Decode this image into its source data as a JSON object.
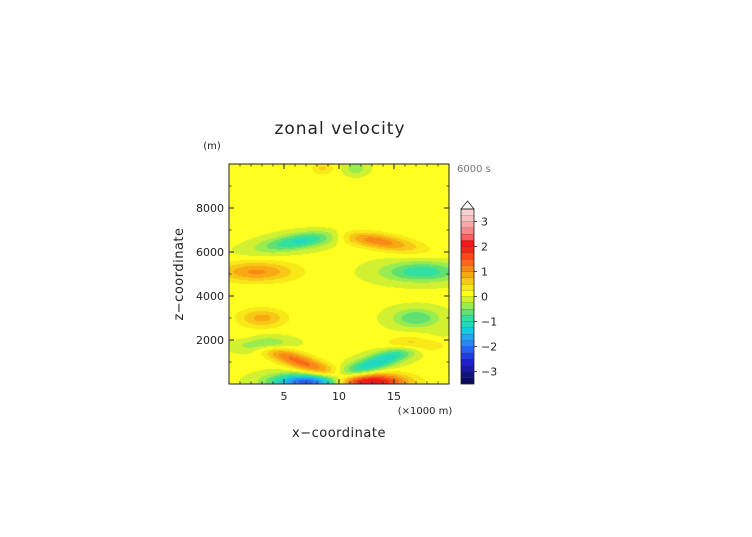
{
  "chart_data": {
    "type": "heatmap",
    "title": "zonal velocity",
    "xlabel": "x−coordinate",
    "ylabel": "z−coordinate",
    "x_unit": "(×1000 m)",
    "y_unit": "(m)",
    "time_label": "6000 s",
    "xlim": [
      0,
      20
    ],
    "ylim": [
      0,
      10000
    ],
    "x_ticks": [
      5,
      10,
      15
    ],
    "x_tick_labels": [
      "5",
      "10",
      "15"
    ],
    "y_ticks": [
      2000,
      4000,
      6000,
      8000
    ],
    "y_tick_labels": [
      "2000",
      "4000",
      "6000",
      "8000"
    ],
    "colorbar": {
      "levels": [
        -3.5,
        -3.25,
        -3,
        -2.75,
        -2.5,
        -2.25,
        -2,
        -1.75,
        -1.5,
        -1.25,
        -1,
        -0.75,
        -0.5,
        -0.25,
        0,
        0.25,
        0.5,
        0.75,
        1,
        1.25,
        1.5,
        1.75,
        2,
        2.25,
        2.5,
        2.75,
        3,
        3.25,
        3.5
      ],
      "colors": [
        "#0a0a60",
        "#101080",
        "#1818a8",
        "#2020c8",
        "#1e3ee0",
        "#2860f0",
        "#2a86f8",
        "#20a8f0",
        "#18c8e0",
        "#20d8c0",
        "#30e0a0",
        "#60e070",
        "#98ec50",
        "#d0f030",
        "#ffff20",
        "#f8e818",
        "#f8c818",
        "#f8a810",
        "#f88818",
        "#f86818",
        "#f84818",
        "#f02818",
        "#f01818",
        "#f86060",
        "#f88888",
        "#f8a8a8",
        "#f8c0c0",
        "#f8d0d0"
      ],
      "extend_top": true,
      "ticks": [
        -3,
        -2,
        -1,
        0,
        1,
        2,
        3
      ],
      "tick_labels": [
        "−3",
        "−2",
        "−1",
        "0",
        "1",
        "2",
        "3"
      ]
    },
    "field": {
      "description_source": "antisymmetric about x = 10; lobes listed for left half (x<10), right half is opposite sign",
      "background": 0.05,
      "lobes": [
        {
          "x": 7.0,
          "z": 100,
          "sx": 2.2,
          "sz": 260,
          "value": -2.2,
          "tilt": 0
        },
        {
          "x": 6.5,
          "z": 1000,
          "sx": 2.8,
          "sz": 280,
          "value": 1.3,
          "tilt": -180
        },
        {
          "x": 3.0,
          "z": 1800,
          "sx": 1.6,
          "sz": 230,
          "value": -0.9,
          "tilt": 0
        },
        {
          "x": 3.0,
          "z": 3000,
          "sx": 1.5,
          "sz": 300,
          "value": 0.8,
          "tilt": 0
        },
        {
          "x": 2.5,
          "z": 5100,
          "sx": 2.5,
          "sz": 320,
          "value": 1.0,
          "tilt": 0
        },
        {
          "x": 6.5,
          "z": 6500,
          "sx": 2.6,
          "sz": 260,
          "value": -1.1,
          "tilt": 80
        },
        {
          "x": 8.5,
          "z": 9800,
          "sx": 0.7,
          "sz": 200,
          "value": 0.5,
          "tilt": 0
        }
      ]
    }
  }
}
